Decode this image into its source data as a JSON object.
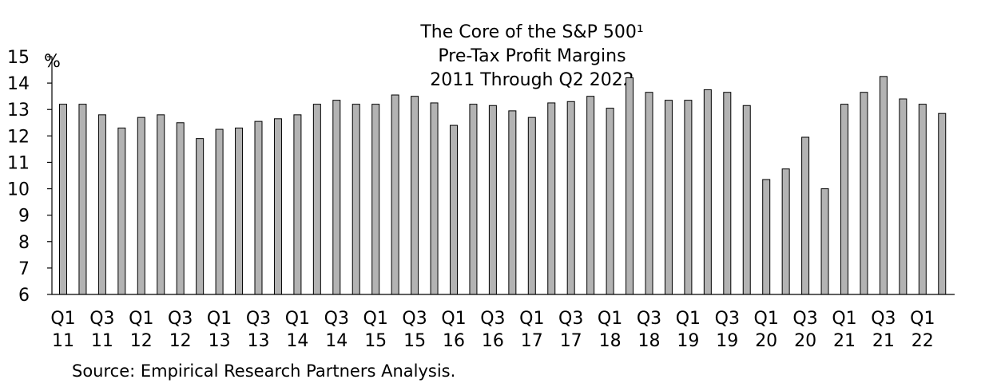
{
  "chart_data": {
    "type": "bar",
    "title": [
      "The Core of the S&P 500¹",
      "Pre-Tax Profit Margins",
      "2011 Through Q2 2022"
    ],
    "ylabel": "%",
    "xlabel": "",
    "ylim": [
      6,
      15
    ],
    "yticks": [
      6,
      7,
      8,
      9,
      10,
      11,
      12,
      13,
      14,
      15
    ],
    "grid": false,
    "categories": [
      "Q1 2011",
      "Q2 2011",
      "Q3 2011",
      "Q4 2011",
      "Q1 2012",
      "Q2 2012",
      "Q3 2012",
      "Q4 2012",
      "Q1 2013",
      "Q2 2013",
      "Q3 2013",
      "Q4 2013",
      "Q1 2014",
      "Q2 2014",
      "Q3 2014",
      "Q4 2014",
      "Q1 2015",
      "Q2 2015",
      "Q3 2015",
      "Q4 2015",
      "Q1 2016",
      "Q2 2016",
      "Q3 2016",
      "Q4 2016",
      "Q1 2017",
      "Q2 2017",
      "Q3 2017",
      "Q4 2017",
      "Q1 2018",
      "Q2 2018",
      "Q3 2018",
      "Q4 2018",
      "Q1 2019",
      "Q2 2019",
      "Q3 2019",
      "Q4 2019",
      "Q1 2020",
      "Q2 2020",
      "Q3 2020",
      "Q4 2020",
      "Q1 2021",
      "Q2 2021",
      "Q3 2021",
      "Q4 2021",
      "Q1 2022",
      "Q2 2022"
    ],
    "values": [
      13.2,
      13.2,
      12.8,
      12.3,
      12.7,
      12.8,
      12.5,
      11.9,
      12.25,
      12.3,
      12.55,
      12.65,
      12.8,
      13.2,
      13.35,
      13.2,
      13.2,
      13.55,
      13.5,
      13.25,
      12.4,
      13.2,
      13.15,
      12.95,
      12.7,
      13.25,
      13.3,
      13.5,
      13.05,
      14.2,
      13.65,
      13.35,
      13.35,
      13.75,
      13.65,
      13.15,
      10.35,
      10.75,
      11.95,
      10.0,
      13.2,
      13.65,
      14.25,
      13.4,
      13.2,
      12.85
    ],
    "xtick_labels": [
      {
        "top": "Q1",
        "bottom": "11",
        "index": 0
      },
      {
        "top": "Q3",
        "bottom": "11",
        "index": 2
      },
      {
        "top": "Q1",
        "bottom": "12",
        "index": 4
      },
      {
        "top": "Q3",
        "bottom": "12",
        "index": 6
      },
      {
        "top": "Q1",
        "bottom": "13",
        "index": 8
      },
      {
        "top": "Q3",
        "bottom": "13",
        "index": 10
      },
      {
        "top": "Q1",
        "bottom": "14",
        "index": 12
      },
      {
        "top": "Q3",
        "bottom": "14",
        "index": 14
      },
      {
        "top": "Q1",
        "bottom": "15",
        "index": 16
      },
      {
        "top": "Q3",
        "bottom": "15",
        "index": 18
      },
      {
        "top": "Q1",
        "bottom": "16",
        "index": 20
      },
      {
        "top": "Q3",
        "bottom": "16",
        "index": 22
      },
      {
        "top": "Q1",
        "bottom": "17",
        "index": 24
      },
      {
        "top": "Q3",
        "bottom": "17",
        "index": 26
      },
      {
        "top": "Q1",
        "bottom": "18",
        "index": 28
      },
      {
        "top": "Q3",
        "bottom": "18",
        "index": 30
      },
      {
        "top": "Q1",
        "bottom": "19",
        "index": 32
      },
      {
        "top": "Q3",
        "bottom": "19",
        "index": 34
      },
      {
        "top": "Q1",
        "bottom": "20",
        "index": 36
      },
      {
        "top": "Q3",
        "bottom": "20",
        "index": 38
      },
      {
        "top": "Q1",
        "bottom": "21",
        "index": 40
      },
      {
        "top": "Q3",
        "bottom": "21",
        "index": 42
      },
      {
        "top": "Q1",
        "bottom": "22",
        "index": 44
      }
    ],
    "bar_color": "#b3b3b3",
    "bar_edge_color": "#000000",
    "source": "Source: Empirical Research Partners Analysis."
  }
}
